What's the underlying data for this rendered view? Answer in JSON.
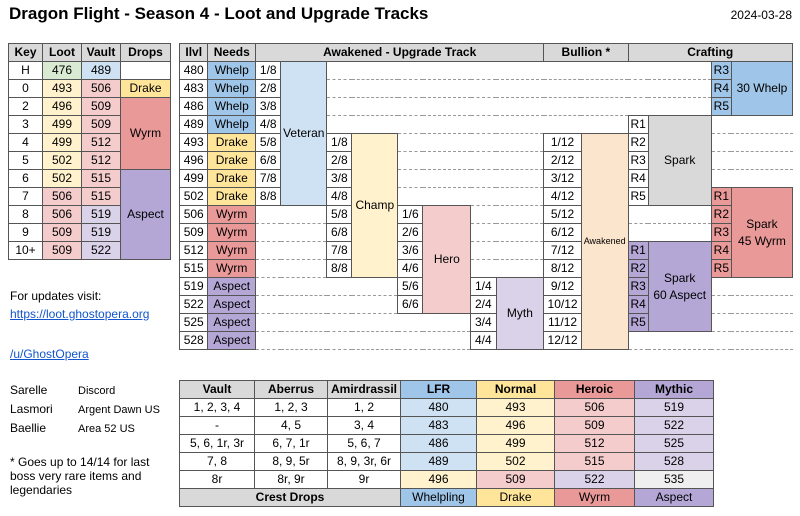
{
  "title": "Dragon Flight - Season 4 - Loot and Upgrade Tracks",
  "date": "2024-03-28",
  "key_table": {
    "headers": [
      "Key",
      "Loot",
      "Vault",
      "Drops"
    ],
    "rows": [
      {
        "key": "H",
        "loot": "476",
        "vault": "489"
      },
      {
        "key": "0",
        "loot": "493",
        "vault": "506"
      },
      {
        "key": "2",
        "loot": "496",
        "vault": "509"
      },
      {
        "key": "3",
        "loot": "499",
        "vault": "509"
      },
      {
        "key": "4",
        "loot": "499",
        "vault": "512"
      },
      {
        "key": "5",
        "loot": "502",
        "vault": "512"
      },
      {
        "key": "6",
        "loot": "502",
        "vault": "515"
      },
      {
        "key": "7",
        "loot": "506",
        "vault": "515"
      },
      {
        "key": "8",
        "loot": "506",
        "vault": "519"
      },
      {
        "key": "9",
        "loot": "509",
        "vault": "519"
      },
      {
        "key": "10+",
        "loot": "509",
        "vault": "522"
      }
    ],
    "drops": [
      "Drake",
      "Wyrm",
      "Aspect"
    ]
  },
  "upgrade_table": {
    "headers": {
      "ilvl": "Ilvl",
      "needs": "Needs",
      "track": "Awakened - Upgrade Track",
      "bullion": "Bullion *",
      "crafting": "Crafting"
    },
    "ilvls": [
      "480",
      "483",
      "486",
      "489",
      "493",
      "496",
      "499",
      "502",
      "506",
      "509",
      "512",
      "515",
      "519",
      "522",
      "525",
      "528"
    ],
    "needs": [
      "Whelp",
      "Whelp",
      "Whelp",
      "Whelp",
      "Drake",
      "Drake",
      "Drake",
      "Drake",
      "Wyrm",
      "Wyrm",
      "Wyrm",
      "Wyrm",
      "Aspect",
      "Aspect",
      "Aspect",
      "Aspect"
    ],
    "veteran": {
      "label": "Veteran",
      "steps": [
        "1/8",
        "2/8",
        "3/8",
        "4/8",
        "5/8",
        "6/8",
        "7/8",
        "8/8"
      ]
    },
    "champ": {
      "label": "Champ",
      "steps": [
        "1/8",
        "2/8",
        "3/8",
        "4/8",
        "5/8",
        "6/8",
        "7/8",
        "8/8"
      ]
    },
    "hero": {
      "label": "Hero",
      "steps": [
        "1/6",
        "2/6",
        "3/6",
        "4/6",
        "5/6",
        "6/6"
      ]
    },
    "myth": {
      "label": "Myth",
      "steps": [
        "1/4",
        "2/4",
        "3/4",
        "4/4"
      ]
    },
    "bullion": {
      "label": "Awakened",
      "steps": [
        "1/12",
        "2/12",
        "3/12",
        "4/12",
        "5/12",
        "6/12",
        "7/12",
        "8/12",
        "9/12",
        "10/12",
        "11/12",
        "12/12"
      ]
    },
    "crafting": {
      "whelp": {
        "ranks": [
          "R3",
          "R4",
          "R5"
        ],
        "label": "30 Whelp"
      },
      "spark": {
        "ranks": [
          "R1",
          "R2",
          "R3",
          "R4",
          "R5"
        ],
        "label": "Spark"
      },
      "spark_wyrm": {
        "ranks": [
          "R1",
          "R2",
          "R3",
          "R4",
          "R5"
        ],
        "label1": "Spark",
        "label2": "45 Wyrm"
      },
      "spark_aspect": {
        "ranks": [
          "R1",
          "R2",
          "R3",
          "R4",
          "R5"
        ],
        "label1": "Spark",
        "label2": "60 Aspect"
      }
    }
  },
  "info": {
    "updates_label": "For updates visit:",
    "url": "https://loot.ghostopera.org",
    "reddit": "/u/GhostOpera"
  },
  "characters": [
    {
      "name": "Sarelle",
      "server": "Discord"
    },
    {
      "name": "Lasmori",
      "server": "Argent Dawn US"
    },
    {
      "name": "Baellie",
      "server": "Area 52 US"
    }
  ],
  "footnote": "* Goes up to 14/14 for last boss very rare items and legendaries",
  "crest_table": {
    "headers": [
      "Vault",
      "Aberrus",
      "Amirdrassil",
      "LFR",
      "Normal",
      "Heroic",
      "Mythic"
    ],
    "rows": [
      [
        "1, 2, 3, 4",
        "1, 2, 3",
        "1, 2",
        "480",
        "493",
        "506",
        "519"
      ],
      [
        "-",
        "4, 5",
        "3, 4",
        "483",
        "496",
        "509",
        "522"
      ],
      [
        "5, 6, 1r, 3r",
        "6, 7, 1r",
        "5, 6, 7",
        "486",
        "499",
        "512",
        "525"
      ],
      [
        "7, 8",
        "8, 9, 5r",
        "8, 9, 3r, 6r",
        "489",
        "502",
        "515",
        "528"
      ],
      [
        "8r",
        "8r, 9r",
        "9r",
        "496",
        "509",
        "522",
        "535"
      ]
    ],
    "footer": {
      "label": "Crest Drops",
      "whelp": "Whelpling",
      "drake": "Drake",
      "wyrm": "Wyrm",
      "aspect": "Aspect"
    }
  }
}
